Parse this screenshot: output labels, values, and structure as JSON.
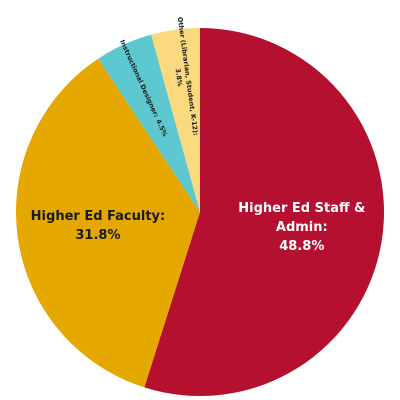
{
  "chart_data": {
    "type": "pie",
    "categories": [
      "Higher Ed Staff & Admin:",
      "Higher Ed Faculty:",
      "Instructional Designer:",
      "Other (Librarian, Student, K-12):"
    ],
    "values": [
      48.8,
      31.8,
      4.5,
      3.8
    ],
    "value_labels": [
      "48.8%",
      "31.8%",
      "4.5%",
      "3.8%"
    ],
    "colors": [
      "#b5102f",
      "#e5a800",
      "#5ec8d1",
      "#fbd97f"
    ]
  }
}
